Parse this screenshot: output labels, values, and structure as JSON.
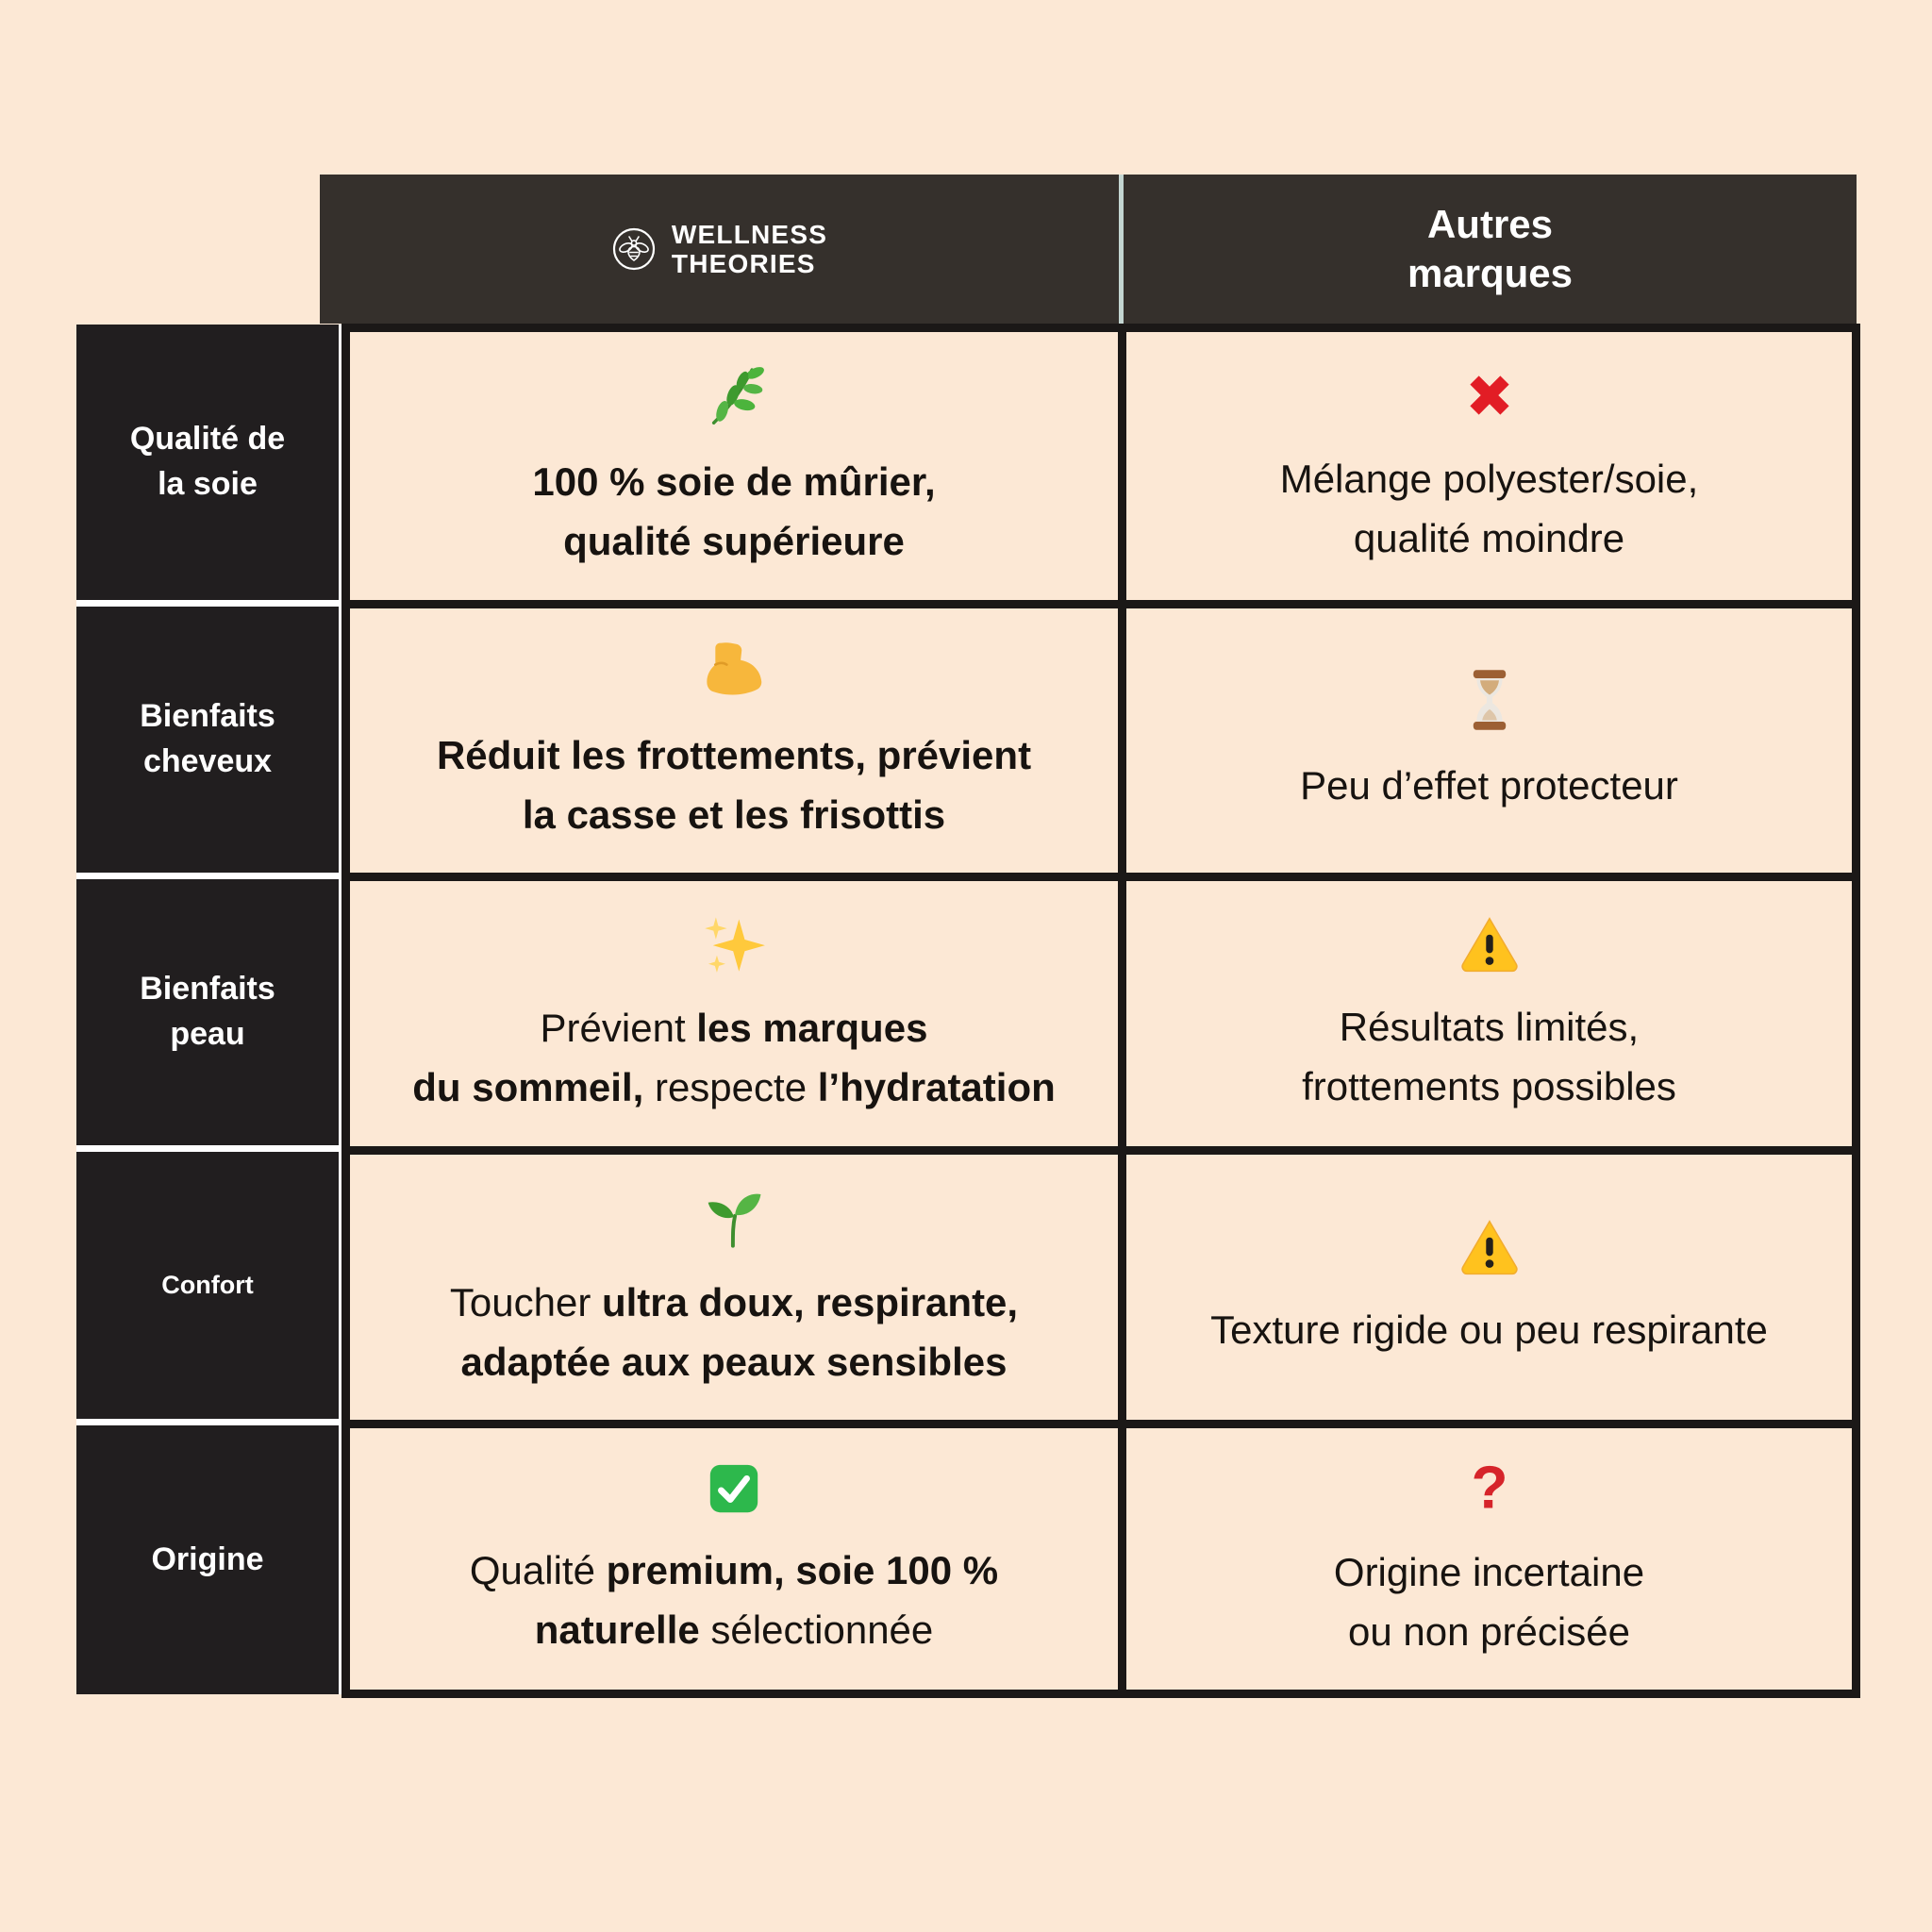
{
  "page": {
    "background_color": "#FCE8D5",
    "table_border_color": "#1B1817",
    "label_cell_color": "#211E1F",
    "header_cell_color": "#35302C",
    "header_divider_color": "#C3D5D1",
    "text_color": "#171310"
  },
  "header": {
    "brand": {
      "icon": "bee-icon",
      "name_lines": [
        "WELLNESS",
        "THEORIES"
      ]
    },
    "competitor": {
      "lines": [
        "Autres",
        "marques"
      ]
    }
  },
  "rows": [
    {
      "id": "qualite-de-la-soie",
      "label_lines": [
        "Qualité de",
        "la soie"
      ],
      "small_label": false,
      "brand": {
        "icon": "herb-icon",
        "lines": [
          [
            {
              "t": "100 % soie de mûrier,",
              "b": true
            }
          ],
          [
            {
              "t": "qualité supérieure",
              "b": true
            }
          ]
        ]
      },
      "other": {
        "icon": "cross-icon",
        "lines": [
          [
            {
              "t": "Mélange polyester/soie,",
              "b": false
            }
          ],
          [
            {
              "t": "qualité moindre",
              "b": false
            }
          ]
        ]
      }
    },
    {
      "id": "bienfaits-cheveux",
      "label_lines": [
        "Bienfaits",
        "cheveux"
      ],
      "small_label": false,
      "brand": {
        "icon": "biceps-icon",
        "lines": [
          [
            {
              "t": "Réduit les frottements, prévient",
              "b": true
            }
          ],
          [
            {
              "t": "la casse et les frisottis",
              "b": true
            }
          ]
        ]
      },
      "other": {
        "icon": "hourglass-icon",
        "lines": [
          [
            {
              "t": "Peu d’effet protecteur",
              "b": false
            }
          ]
        ]
      }
    },
    {
      "id": "bienfaits-peau",
      "label_lines": [
        "Bienfaits",
        "peau"
      ],
      "small_label": false,
      "brand": {
        "icon": "sparkles-icon",
        "lines": [
          [
            {
              "t": "Prévient ",
              "b": false
            },
            {
              "t": "les marques",
              "b": true
            }
          ],
          [
            {
              "t": "du sommeil,",
              "b": true
            },
            {
              "t": " respecte ",
              "b": false
            },
            {
              "t": "l’hydratation",
              "b": true
            }
          ]
        ]
      },
      "other": {
        "icon": "warning-icon",
        "lines": [
          [
            {
              "t": "Résultats limités,",
              "b": false
            }
          ],
          [
            {
              "t": "frottements possibles",
              "b": false
            }
          ]
        ]
      }
    },
    {
      "id": "confort",
      "label_lines": [
        "Confort"
      ],
      "small_label": true,
      "brand": {
        "icon": "seedling-icon",
        "lines": [
          [
            {
              "t": "Toucher ",
              "b": false
            },
            {
              "t": "ultra doux, respirante,",
              "b": true
            }
          ],
          [
            {
              "t": "adaptée aux peaux sensibles",
              "b": true
            }
          ]
        ]
      },
      "other": {
        "icon": "warning-icon",
        "lines": [
          [
            {
              "t": "Texture rigide ou peu respirante",
              "b": false
            }
          ]
        ]
      }
    },
    {
      "id": "origine",
      "label_lines": [
        "Origine"
      ],
      "small_label": false,
      "brand": {
        "icon": "check-icon",
        "lines": [
          [
            {
              "t": "Qualité ",
              "b": false
            },
            {
              "t": "premium, soie 100 %",
              "b": true
            }
          ],
          [
            {
              "t": "naturelle",
              "b": true
            },
            {
              "t": " sélectionnée",
              "b": false
            }
          ]
        ]
      },
      "other": {
        "icon": "question-icon",
        "lines": [
          [
            {
              "t": "Origine incertaine",
              "b": false
            }
          ],
          [
            {
              "t": "ou non précisée",
              "b": false
            }
          ]
        ]
      }
    }
  ]
}
